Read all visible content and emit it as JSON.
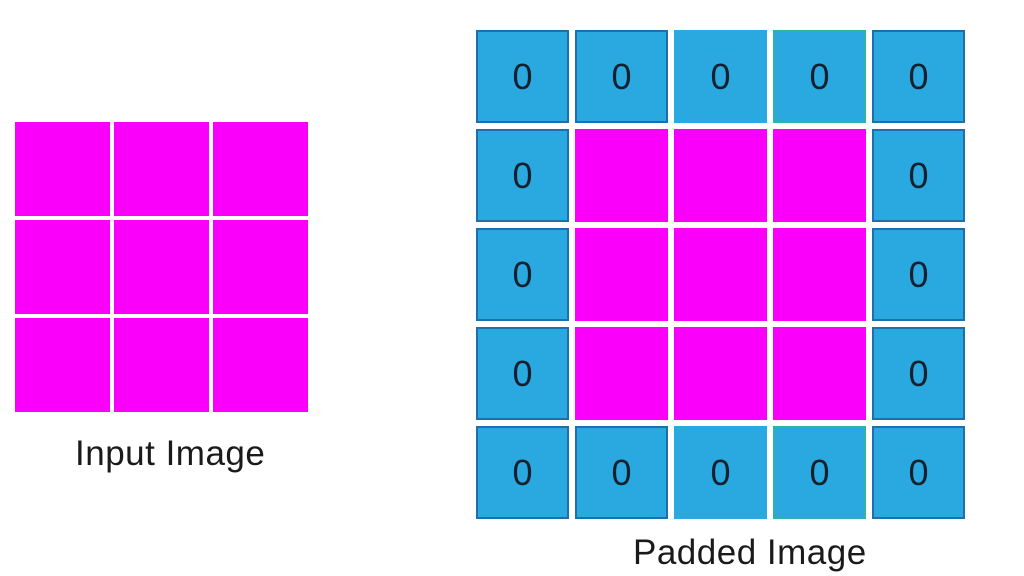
{
  "labels": {
    "input": "Input Image",
    "padded": "Padded Image"
  },
  "colors": {
    "background": "#FFFFFF",
    "magenta": "#FA00FA",
    "blue": "#29A9E0",
    "border_dark": "#1E6FAE",
    "border_teal": "#2FB3A3",
    "zero_text": "#15202F",
    "label_text": "#1A1A1A"
  },
  "input_grid": {
    "rows": 3,
    "cols": 3,
    "cell_type": "image"
  },
  "padded_grid": {
    "rows": 5,
    "cols": 5,
    "pad_value": "0",
    "cells": [
      {
        "type": "zero",
        "value": "0",
        "border": "dark"
      },
      {
        "type": "zero",
        "value": "0",
        "border": "dark"
      },
      {
        "type": "zero",
        "value": "0",
        "border": "none"
      },
      {
        "type": "zero",
        "value": "0",
        "border": "teal"
      },
      {
        "type": "zero",
        "value": "0",
        "border": "dark"
      },
      {
        "type": "zero",
        "value": "0",
        "border": "dark"
      },
      {
        "type": "image",
        "value": "",
        "border": "none"
      },
      {
        "type": "image",
        "value": "",
        "border": "none"
      },
      {
        "type": "image",
        "value": "",
        "border": "none"
      },
      {
        "type": "zero",
        "value": "0",
        "border": "dark"
      },
      {
        "type": "zero",
        "value": "0",
        "border": "dark"
      },
      {
        "type": "image",
        "value": "",
        "border": "none"
      },
      {
        "type": "image",
        "value": "",
        "border": "none"
      },
      {
        "type": "image",
        "value": "",
        "border": "none"
      },
      {
        "type": "zero",
        "value": "0",
        "border": "dark"
      },
      {
        "type": "zero",
        "value": "0",
        "border": "dark"
      },
      {
        "type": "image",
        "value": "",
        "border": "none"
      },
      {
        "type": "image",
        "value": "",
        "border": "none"
      },
      {
        "type": "image",
        "value": "",
        "border": "none"
      },
      {
        "type": "zero",
        "value": "0",
        "border": "dark"
      },
      {
        "type": "zero",
        "value": "0",
        "border": "dark"
      },
      {
        "type": "zero",
        "value": "0",
        "border": "dark"
      },
      {
        "type": "zero",
        "value": "0",
        "border": "none"
      },
      {
        "type": "zero",
        "value": "0",
        "border": "teal"
      },
      {
        "type": "zero",
        "value": "0",
        "border": "dark"
      }
    ]
  }
}
